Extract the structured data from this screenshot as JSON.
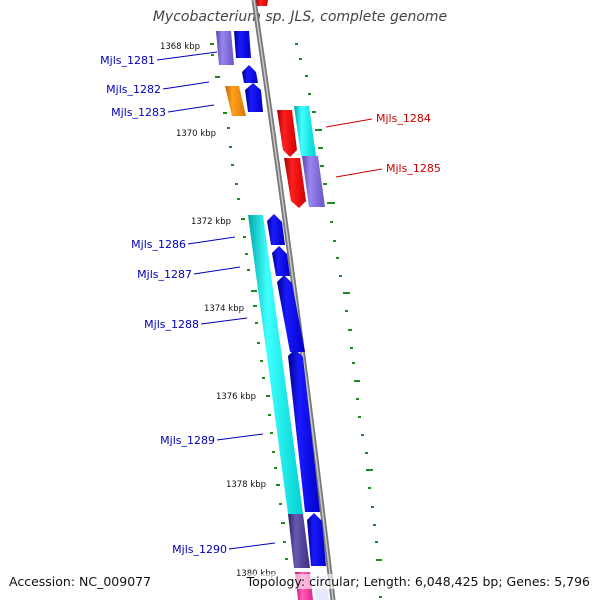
{
  "title": "Mycobacterium sp. JLS, complete genome",
  "footer": {
    "accession": "Accession: NC_009077",
    "summary": "Topology: circular; Length: 6,048,425 bp; Genes: 5,796"
  },
  "scale_labels": [
    "1368 kbp",
    "1370 kbp",
    "1372 kbp",
    "1374 kbp",
    "1376 kbp",
    "1378 kbp",
    "1380 kbp"
  ],
  "gene_labels": [
    "Mjls_1281",
    "Mjls_1282",
    "Mjls_1283",
    "Mjls_1284",
    "Mjls_1285",
    "Mjls_1286",
    "Mjls_1287",
    "Mjls_1288",
    "Mjls_1289",
    "Mjls_1290"
  ],
  "colors": {
    "backbone": "#888888",
    "cds": "#0000ee",
    "cog_blue": "#7b5fd0",
    "cog_cyan": "#00e0e0",
    "cog_red": "#e00000",
    "cog_orange": "#f08c00",
    "cog_dark": "#4c3d8f",
    "cog_pink": "#ff3fa0",
    "gc_tick": "#1a8a1a",
    "label_forward": "#0000bb",
    "label_reverse": "#cc0000"
  }
}
